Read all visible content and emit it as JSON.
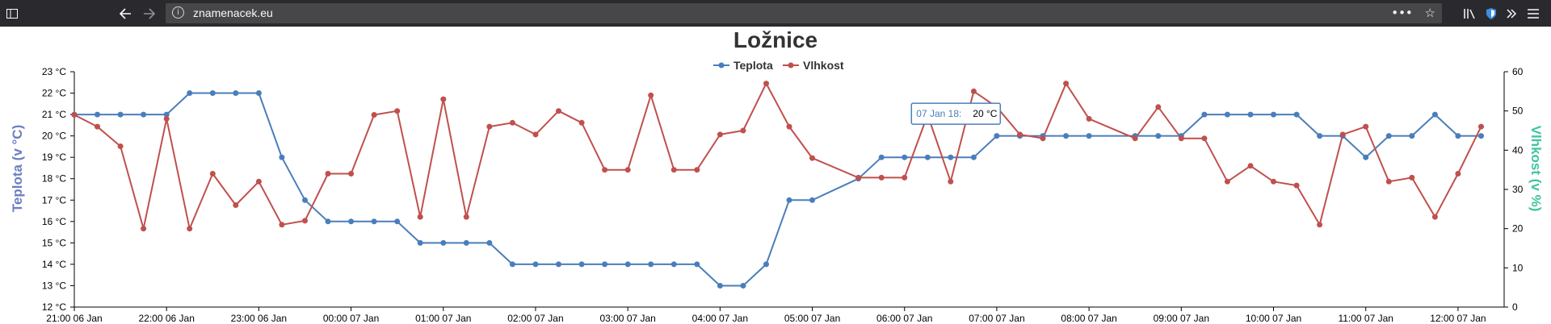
{
  "browser": {
    "url": "znamenacek.eu",
    "icons": {
      "sidebar": "sidebar-icon",
      "back": "back-arrow-icon",
      "forward": "forward-arrow-icon",
      "info": "info-icon",
      "more": "more-dots-icon",
      "bookmark": "star-icon",
      "library": "library-icon",
      "shield": "shield-icon",
      "overflow": "overflow-chevrons-icon",
      "menu": "hamburger-menu-icon"
    }
  },
  "chart_data": {
    "type": "line",
    "title": "Ložnice",
    "ylabel_left": "Teplota (v °C)",
    "ylabel_right": "Vlhkost (v %)",
    "ylim_left": [
      12,
      23
    ],
    "ylim_right": [
      0,
      60
    ],
    "yticks_left": [
      "23 °C",
      "22 °C",
      "21 °C",
      "20 °C",
      "19 °C",
      "18 °C",
      "17 °C",
      "16 °C",
      "15 °C",
      "14 °C",
      "13 °C",
      "12 °C"
    ],
    "yticks_right": [
      "60",
      "50",
      "40",
      "30",
      "20",
      "10",
      "0"
    ],
    "x_range": [
      "2019-01-06 21:00",
      "2019-01-07 12:30"
    ],
    "x_ticks": [
      "21:00 06 Jan",
      "22:00 06 Jan",
      "23:00 06 Jan",
      "00:00 07 Jan",
      "01:00 07 Jan",
      "02:00 07 Jan",
      "03:00 07 Jan",
      "04:00 07 Jan",
      "05:00 07 Jan",
      "06:00 07 Jan",
      "07:00 07 Jan",
      "08:00 07 Jan",
      "09:00 07 Jan",
      "10:00 07 Jan",
      "11:00 07 Jan",
      "12:00 07 Jan"
    ],
    "legend": {
      "placement": "top-center"
    },
    "tooltip": {
      "label": "07 Jan 18:",
      "value": "20 °C"
    },
    "series": [
      {
        "name": "Teplota",
        "axis": "left",
        "color": "#4a7ebb",
        "points": [
          [
            "2019-01-06 21:00",
            21
          ],
          [
            "2019-01-06 21:15",
            21
          ],
          [
            "2019-01-06 21:30",
            21
          ],
          [
            "2019-01-06 21:45",
            21
          ],
          [
            "2019-01-06 22:00",
            21
          ],
          [
            "2019-01-06 22:15",
            22
          ],
          [
            "2019-01-06 22:30",
            22
          ],
          [
            "2019-01-06 22:45",
            22
          ],
          [
            "2019-01-06 23:00",
            22
          ],
          [
            "2019-01-06 23:15",
            19
          ],
          [
            "2019-01-06 23:30",
            17
          ],
          [
            "2019-01-06 23:45",
            16
          ],
          [
            "2019-01-07 00:00",
            16
          ],
          [
            "2019-01-07 00:15",
            16
          ],
          [
            "2019-01-07 00:30",
            16
          ],
          [
            "2019-01-07 00:45",
            15
          ],
          [
            "2019-01-07 01:00",
            15
          ],
          [
            "2019-01-07 01:15",
            15
          ],
          [
            "2019-01-07 01:30",
            15
          ],
          [
            "2019-01-07 01:45",
            14
          ],
          [
            "2019-01-07 02:00",
            14
          ],
          [
            "2019-01-07 02:15",
            14
          ],
          [
            "2019-01-07 02:30",
            14
          ],
          [
            "2019-01-07 02:45",
            14
          ],
          [
            "2019-01-07 03:00",
            14
          ],
          [
            "2019-01-07 03:15",
            14
          ],
          [
            "2019-01-07 03:30",
            14
          ],
          [
            "2019-01-07 03:45",
            14
          ],
          [
            "2019-01-07 04:00",
            13
          ],
          [
            "2019-01-07 04:15",
            13
          ],
          [
            "2019-01-07 04:30",
            14
          ],
          [
            "2019-01-07 04:45",
            17
          ],
          [
            "2019-01-07 05:00",
            17
          ],
          [
            "2019-01-07 05:30",
            18
          ],
          [
            "2019-01-07 05:45",
            19
          ],
          [
            "2019-01-07 06:00",
            19
          ],
          [
            "2019-01-07 06:15",
            19
          ],
          [
            "2019-01-07 06:30",
            19
          ],
          [
            "2019-01-07 06:45",
            19
          ],
          [
            "2019-01-07 07:00",
            20
          ],
          [
            "2019-01-07 07:15",
            20
          ],
          [
            "2019-01-07 07:30",
            20
          ],
          [
            "2019-01-07 07:45",
            20
          ],
          [
            "2019-01-07 08:00",
            20
          ],
          [
            "2019-01-07 08:30",
            20
          ],
          [
            "2019-01-07 08:45",
            20
          ],
          [
            "2019-01-07 09:00",
            20
          ],
          [
            "2019-01-07 09:15",
            21
          ],
          [
            "2019-01-07 09:30",
            21
          ],
          [
            "2019-01-07 09:45",
            21
          ],
          [
            "2019-01-07 10:00",
            21
          ],
          [
            "2019-01-07 10:15",
            21
          ],
          [
            "2019-01-07 10:30",
            20
          ],
          [
            "2019-01-07 10:45",
            20
          ],
          [
            "2019-01-07 11:00",
            19
          ],
          [
            "2019-01-07 11:15",
            20
          ],
          [
            "2019-01-07 11:30",
            20
          ],
          [
            "2019-01-07 11:45",
            21
          ],
          [
            "2019-01-07 12:00",
            20
          ],
          [
            "2019-01-07 12:15",
            20
          ]
        ]
      },
      {
        "name": "Vlhkost",
        "axis": "right",
        "color": "#c0504d",
        "points": [
          [
            "2019-01-06 21:00",
            49
          ],
          [
            "2019-01-06 21:15",
            46
          ],
          [
            "2019-01-06 21:30",
            41
          ],
          [
            "2019-01-06 21:45",
            20
          ],
          [
            "2019-01-06 22:00",
            48
          ],
          [
            "2019-01-06 22:15",
            20
          ],
          [
            "2019-01-06 22:30",
            34
          ],
          [
            "2019-01-06 22:45",
            26
          ],
          [
            "2019-01-06 23:00",
            32
          ],
          [
            "2019-01-06 23:15",
            21
          ],
          [
            "2019-01-06 23:30",
            22
          ],
          [
            "2019-01-06 23:45",
            34
          ],
          [
            "2019-01-07 00:00",
            34
          ],
          [
            "2019-01-07 00:15",
            49
          ],
          [
            "2019-01-07 00:30",
            50
          ],
          [
            "2019-01-07 00:45",
            23
          ],
          [
            "2019-01-07 01:00",
            53
          ],
          [
            "2019-01-07 01:15",
            23
          ],
          [
            "2019-01-07 01:30",
            46
          ],
          [
            "2019-01-07 01:45",
            47
          ],
          [
            "2019-01-07 02:00",
            44
          ],
          [
            "2019-01-07 02:15",
            50
          ],
          [
            "2019-01-07 02:30",
            47
          ],
          [
            "2019-01-07 02:45",
            35
          ],
          [
            "2019-01-07 03:00",
            35
          ],
          [
            "2019-01-07 03:15",
            54
          ],
          [
            "2019-01-07 03:30",
            35
          ],
          [
            "2019-01-07 03:45",
            35
          ],
          [
            "2019-01-07 04:00",
            44
          ],
          [
            "2019-01-07 04:15",
            45
          ],
          [
            "2019-01-07 04:30",
            57
          ],
          [
            "2019-01-07 04:45",
            46
          ],
          [
            "2019-01-07 05:00",
            38
          ],
          [
            "2019-01-07 05:30",
            33
          ],
          [
            "2019-01-07 05:45",
            33
          ],
          [
            "2019-01-07 06:00",
            33
          ],
          [
            "2019-01-07 06:15",
            49
          ],
          [
            "2019-01-07 06:30",
            32
          ],
          [
            "2019-01-07 06:45",
            55
          ],
          [
            "2019-01-07 07:00",
            51
          ],
          [
            "2019-01-07 07:15",
            44
          ],
          [
            "2019-01-07 07:30",
            43
          ],
          [
            "2019-01-07 07:45",
            57
          ],
          [
            "2019-01-07 08:00",
            48
          ],
          [
            "2019-01-07 08:30",
            43
          ],
          [
            "2019-01-07 08:45",
            51
          ],
          [
            "2019-01-07 09:00",
            43
          ],
          [
            "2019-01-07 09:15",
            43
          ],
          [
            "2019-01-07 09:30",
            32
          ],
          [
            "2019-01-07 09:45",
            36
          ],
          [
            "2019-01-07 10:00",
            32
          ],
          [
            "2019-01-07 10:15",
            31
          ],
          [
            "2019-01-07 10:30",
            21
          ],
          [
            "2019-01-07 10:45",
            44
          ],
          [
            "2019-01-07 11:00",
            46
          ],
          [
            "2019-01-07 11:15",
            32
          ],
          [
            "2019-01-07 11:30",
            33
          ],
          [
            "2019-01-07 11:45",
            23
          ],
          [
            "2019-01-07 12:00",
            34
          ],
          [
            "2019-01-07 12:15",
            46
          ]
        ]
      }
    ]
  }
}
